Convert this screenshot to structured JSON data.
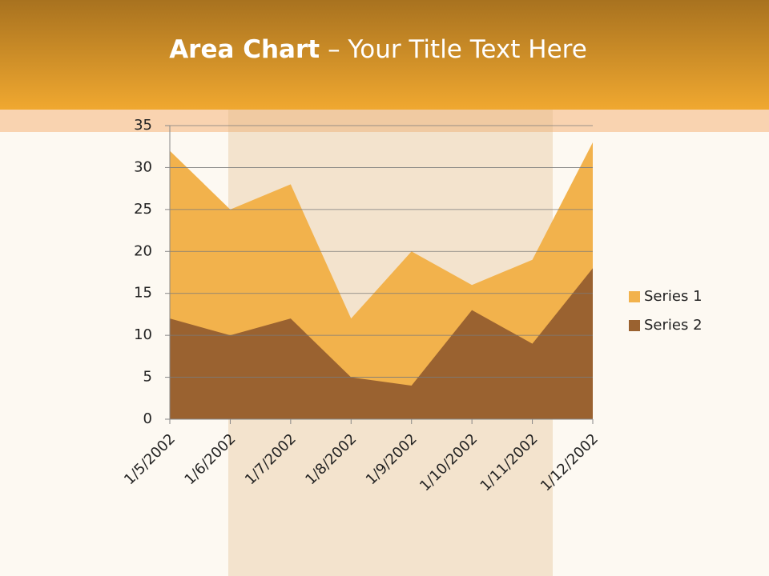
{
  "chart_data": {
    "type": "area",
    "title": {
      "bold": "Area Chart",
      "rest": "– Your Title Text Here"
    },
    "categories": [
      "1/5/2002",
      "1/6/2002",
      "1/7/2002",
      "1/8/2002",
      "1/9/2002",
      "1/10/2002",
      "1/11/2002",
      "1/12/2002"
    ],
    "series": [
      {
        "name": "Series 1",
        "color": "#f2b24c",
        "values": [
          32,
          25,
          28,
          12,
          20,
          16,
          19,
          33
        ]
      },
      {
        "name": "Series 2",
        "color": "#9a6230",
        "values": [
          12,
          10,
          12,
          5,
          4,
          13,
          9,
          18
        ]
      }
    ],
    "ylim": [
      0,
      35
    ],
    "yticks": [
      0,
      5,
      10,
      15,
      20,
      25,
      30,
      35
    ],
    "grid": true,
    "legend": "right"
  }
}
